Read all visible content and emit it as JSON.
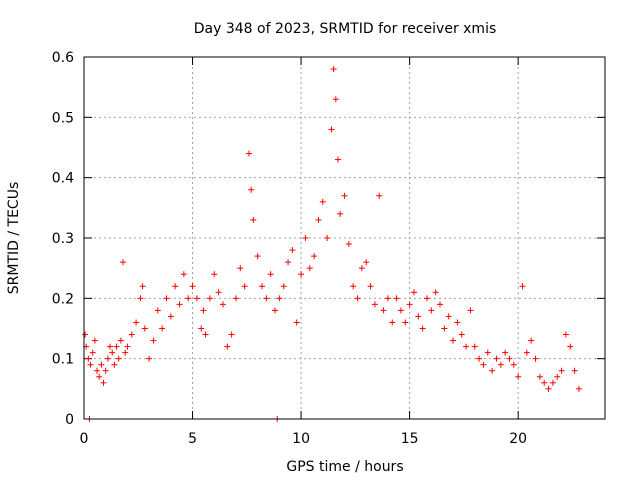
{
  "chart_data": {
    "type": "scatter",
    "title": "Day 348 of 2023, SRMTID for receiver xmis",
    "xlabel": "GPS time / hours",
    "ylabel": "SRMTID / TECUs",
    "xlim": [
      0,
      24
    ],
    "ylim": [
      0,
      0.6
    ],
    "grid": true,
    "marker": "+",
    "marker_color": "#ff0000",
    "x_ticks": [
      0,
      5,
      10,
      15,
      20
    ],
    "x_tick_labels": [
      "0",
      "5",
      "10",
      "15",
      "20"
    ],
    "y_ticks": [
      0,
      0.1,
      0.2,
      0.3,
      0.4,
      0.5,
      0.6
    ],
    "y_tick_labels": [
      "0",
      "0.1",
      "0.2",
      "0.3",
      "0.4",
      "0.5",
      "0.6"
    ],
    "series": [
      {
        "name": "SRMTID",
        "x": [
          0.05,
          0.1,
          0.2,
          0.3,
          0.4,
          0.5,
          0.6,
          0.7,
          0.8,
          0.9,
          1.0,
          1.1,
          1.2,
          1.3,
          1.4,
          1.5,
          1.6,
          1.7,
          1.8,
          1.9,
          2.0,
          2.2,
          2.4,
          2.6,
          2.7,
          2.8,
          3.0,
          3.2,
          3.4,
          3.6,
          3.8,
          4.0,
          4.2,
          4.4,
          4.6,
          4.8,
          5.0,
          5.2,
          5.4,
          5.5,
          5.6,
          5.8,
          6.0,
          6.2,
          6.4,
          6.6,
          6.8,
          7.0,
          7.2,
          7.4,
          7.6,
          7.7,
          7.8,
          8.0,
          8.2,
          8.4,
          8.6,
          8.8,
          9.0,
          9.2,
          9.4,
          9.6,
          9.8,
          10.0,
          10.2,
          10.4,
          10.6,
          10.8,
          11.0,
          11.2,
          11.4,
          11.5,
          11.6,
          11.7,
          11.8,
          12.0,
          12.2,
          12.4,
          12.6,
          12.8,
          13.0,
          13.2,
          13.4,
          13.6,
          13.8,
          14.0,
          14.2,
          14.4,
          14.6,
          14.8,
          15.0,
          15.2,
          15.4,
          15.6,
          15.8,
          16.0,
          16.2,
          16.4,
          16.6,
          16.8,
          17.0,
          17.2,
          17.4,
          17.6,
          17.8,
          18.0,
          18.2,
          18.4,
          18.6,
          18.8,
          19.0,
          19.2,
          19.4,
          19.6,
          19.8,
          20.0,
          20.2,
          20.4,
          20.6,
          20.8,
          21.0,
          21.2,
          21.4,
          21.6,
          21.8,
          22.0,
          22.2,
          22.4,
          22.6,
          22.8
        ],
        "y": [
          0.14,
          0.12,
          0.1,
          0.09,
          0.11,
          0.13,
          0.08,
          0.07,
          0.09,
          0.06,
          0.08,
          0.1,
          0.12,
          0.11,
          0.09,
          0.12,
          0.1,
          0.13,
          0.26,
          0.11,
          0.12,
          0.14,
          0.16,
          0.2,
          0.22,
          0.15,
          0.1,
          0.13,
          0.18,
          0.15,
          0.2,
          0.17,
          0.22,
          0.19,
          0.24,
          0.2,
          0.22,
          0.2,
          0.15,
          0.18,
          0.14,
          0.2,
          0.24,
          0.21,
          0.19,
          0.12,
          0.14,
          0.2,
          0.25,
          0.22,
          0.44,
          0.38,
          0.33,
          0.27,
          0.22,
          0.2,
          0.24,
          0.18,
          0.2,
          0.22,
          0.26,
          0.28,
          0.16,
          0.24,
          0.3,
          0.25,
          0.27,
          0.33,
          0.36,
          0.3,
          0.48,
          0.58,
          0.53,
          0.43,
          0.34,
          0.37,
          0.29,
          0.22,
          0.2,
          0.25,
          0.26,
          0.22,
          0.19,
          0.37,
          0.18,
          0.2,
          0.16,
          0.2,
          0.18,
          0.16,
          0.19,
          0.21,
          0.17,
          0.15,
          0.2,
          0.18,
          0.21,
          0.19,
          0.15,
          0.17,
          0.13,
          0.16,
          0.14,
          0.12,
          0.18,
          0.12,
          0.1,
          0.09,
          0.11,
          0.08,
          0.1,
          0.09,
          0.11,
          0.1,
          0.09,
          0.07,
          0.22,
          0.11,
          0.13,
          0.1,
          0.07,
          0.06,
          0.05,
          0.06,
          0.07,
          0.08,
          0.14,
          0.12,
          0.08,
          0.05
        ]
      }
    ],
    "outliers": {
      "x": [
        0.25,
        8.9
      ],
      "y": [
        0.0,
        0.0
      ]
    }
  }
}
